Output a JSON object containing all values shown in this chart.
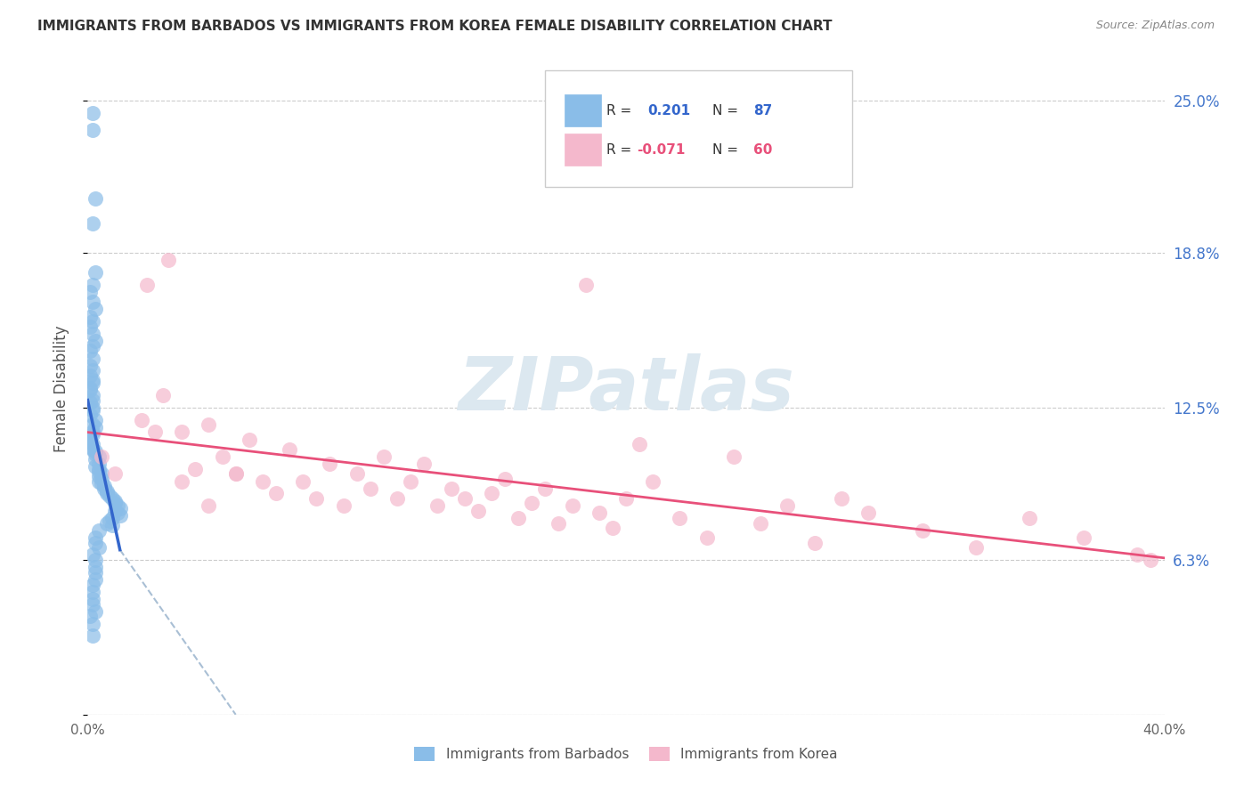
{
  "title": "IMMIGRANTS FROM BARBADOS VS IMMIGRANTS FROM KOREA FEMALE DISABILITY CORRELATION CHART",
  "source": "Source: ZipAtlas.com",
  "ylabel": "Female Disability",
  "xlim": [
    0.0,
    0.4
  ],
  "ylim": [
    0.0,
    0.265
  ],
  "ytick_vals": [
    0.0,
    0.063,
    0.125,
    0.188,
    0.25
  ],
  "ytick_labels": [
    "",
    "6.3%",
    "12.5%",
    "18.8%",
    "25.0%"
  ],
  "xtick_vals": [
    0.0,
    0.05,
    0.1,
    0.15,
    0.2,
    0.25,
    0.3,
    0.35,
    0.4
  ],
  "blue_color": "#8abde8",
  "pink_color": "#f4b8cc",
  "blue_line_color": "#3366cc",
  "pink_line_color": "#e8507a",
  "dashed_line_color": "#a0b8d0",
  "watermark_color": "#dce8f0",
  "barbados_x": [
    0.002,
    0.002,
    0.003,
    0.002,
    0.003,
    0.002,
    0.001,
    0.002,
    0.003,
    0.001,
    0.002,
    0.001,
    0.002,
    0.003,
    0.002,
    0.001,
    0.002,
    0.001,
    0.002,
    0.001,
    0.002,
    0.002,
    0.001,
    0.001,
    0.002,
    0.002,
    0.001,
    0.002,
    0.002,
    0.001,
    0.003,
    0.002,
    0.003,
    0.002,
    0.002,
    0.001,
    0.001,
    0.002,
    0.001,
    0.002,
    0.003,
    0.003,
    0.004,
    0.003,
    0.004,
    0.003,
    0.004,
    0.004,
    0.005,
    0.004,
    0.005,
    0.004,
    0.005,
    0.006,
    0.006,
    0.007,
    0.007,
    0.008,
    0.009,
    0.01,
    0.01,
    0.011,
    0.012,
    0.01,
    0.011,
    0.012,
    0.009,
    0.008,
    0.007,
    0.009,
    0.004,
    0.003,
    0.004,
    0.003,
    0.003,
    0.002,
    0.002,
    0.003,
    0.002,
    0.002,
    0.003,
    0.002,
    0.003,
    0.003,
    0.002,
    0.002,
    0.001
  ],
  "barbados_y": [
    0.245,
    0.238,
    0.21,
    0.2,
    0.18,
    0.175,
    0.172,
    0.168,
    0.165,
    0.162,
    0.16,
    0.158,
    0.155,
    0.152,
    0.15,
    0.148,
    0.145,
    0.142,
    0.14,
    0.138,
    0.136,
    0.135,
    0.133,
    0.132,
    0.13,
    0.128,
    0.127,
    0.125,
    0.124,
    0.122,
    0.12,
    0.118,
    0.117,
    0.115,
    0.114,
    0.112,
    0.111,
    0.11,
    0.109,
    0.108,
    0.107,
    0.106,
    0.105,
    0.104,
    0.102,
    0.101,
    0.1,
    0.099,
    0.098,
    0.097,
    0.096,
    0.095,
    0.094,
    0.093,
    0.092,
    0.091,
    0.09,
    0.089,
    0.088,
    0.087,
    0.086,
    0.085,
    0.084,
    0.083,
    0.082,
    0.081,
    0.08,
    0.079,
    0.078,
    0.077,
    0.075,
    0.072,
    0.068,
    0.063,
    0.058,
    0.053,
    0.047,
    0.042,
    0.037,
    0.032,
    0.07,
    0.065,
    0.06,
    0.055,
    0.05,
    0.045,
    0.04
  ],
  "korea_x": [
    0.005,
    0.01,
    0.02,
    0.03,
    0.022,
    0.028,
    0.035,
    0.04,
    0.045,
    0.05,
    0.055,
    0.06,
    0.065,
    0.07,
    0.075,
    0.08,
    0.085,
    0.09,
    0.095,
    0.1,
    0.105,
    0.11,
    0.115,
    0.12,
    0.125,
    0.13,
    0.135,
    0.14,
    0.145,
    0.15,
    0.155,
    0.16,
    0.165,
    0.17,
    0.175,
    0.18,
    0.185,
    0.19,
    0.195,
    0.2,
    0.205,
    0.21,
    0.22,
    0.23,
    0.24,
    0.25,
    0.26,
    0.27,
    0.28,
    0.29,
    0.31,
    0.33,
    0.35,
    0.37,
    0.39,
    0.395,
    0.025,
    0.035,
    0.045,
    0.055
  ],
  "korea_y": [
    0.105,
    0.098,
    0.12,
    0.185,
    0.175,
    0.13,
    0.115,
    0.1,
    0.118,
    0.105,
    0.098,
    0.112,
    0.095,
    0.09,
    0.108,
    0.095,
    0.088,
    0.102,
    0.085,
    0.098,
    0.092,
    0.105,
    0.088,
    0.095,
    0.102,
    0.085,
    0.092,
    0.088,
    0.083,
    0.09,
    0.096,
    0.08,
    0.086,
    0.092,
    0.078,
    0.085,
    0.175,
    0.082,
    0.076,
    0.088,
    0.11,
    0.095,
    0.08,
    0.072,
    0.105,
    0.078,
    0.085,
    0.07,
    0.088,
    0.082,
    0.075,
    0.068,
    0.08,
    0.072,
    0.065,
    0.063,
    0.115,
    0.095,
    0.085,
    0.098
  ]
}
